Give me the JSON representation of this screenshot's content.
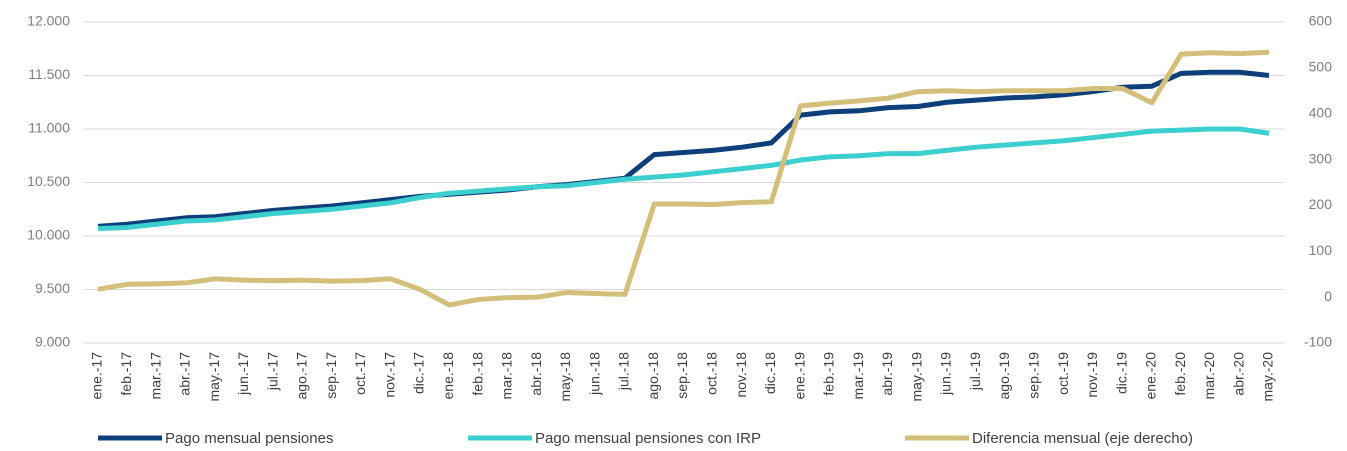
{
  "chart_data": {
    "type": "line",
    "categories": [
      "ene.-17",
      "feb.-17",
      "mar.-17",
      "abr.-17",
      "may.-17",
      "jun.-17",
      "jul.-17",
      "ago.-17",
      "sep.-17",
      "oct.-17",
      "nov.-17",
      "dic.-17",
      "ene.-18",
      "feb.-18",
      "mar.-18",
      "abr.-18",
      "may.-18",
      "jun.-18",
      "jul.-18",
      "ago.-18",
      "sep.-18",
      "oct.-18",
      "nov.-18",
      "dic.-18",
      "ene.-19",
      "feb.-19",
      "mar.-19",
      "abr.-19",
      "may.-19",
      "jun.-19",
      "jul.-19",
      "ago.-19",
      "sep.-19",
      "oct.-19",
      "nov.-19",
      "dic.-19",
      "ene.-20",
      "feb.-20",
      "mar.-20",
      "abr.-20",
      "may.-20"
    ],
    "series": [
      {
        "name": "Pago mensual pensiones",
        "color": "#0d3f7a",
        "values": [
          10090,
          10110,
          10140,
          10170,
          10180,
          10210,
          10240,
          10260,
          10280,
          10310,
          10340,
          10370,
          10390,
          10410,
          10430,
          10460,
          10480,
          10510,
          10540,
          10760,
          10780,
          10800,
          10830,
          10870,
          11130,
          11160,
          11170,
          11200,
          11210,
          11250,
          11270,
          11290,
          11300,
          11320,
          11350,
          11390,
          11400,
          11520,
          11530,
          11530,
          11500
        ]
      },
      {
        "name": "Pago mensual pensiones con IRP",
        "color": "#3ccfcf",
        "values": [
          10070,
          10080,
          10110,
          10140,
          10150,
          10180,
          10210,
          10230,
          10250,
          10280,
          10310,
          10360,
          10400,
          10420,
          10440,
          10460,
          10470,
          10500,
          10530,
          10550,
          10570,
          10600,
          10630,
          10660,
          10710,
          10740,
          10750,
          10770,
          10770,
          10800,
          10830,
          10850,
          10870,
          10890,
          10920,
          10950,
          10980,
          10990,
          11000,
          11000,
          10960
        ]
      },
      {
        "name": "Diferencia mensual (eje derecho)",
        "color": "#d4bf7a",
        "axis": "y2",
        "values": [
          17,
          28,
          29,
          31,
          40,
          37,
          36,
          37,
          35,
          36,
          40,
          17,
          -17,
          -5,
          -1,
          0,
          10,
          8,
          6,
          203,
          203,
          202,
          206,
          208,
          417,
          423,
          428,
          434,
          448,
          450,
          448,
          450,
          450,
          450,
          455,
          455,
          424,
          530,
          533,
          531,
          534
        ]
      }
    ],
    "ylim": [
      9000,
      12000
    ],
    "yticks": [
      {
        "value": 9000,
        "label": "9.000"
      },
      {
        "value": 9500,
        "label": "9.500"
      },
      {
        "value": 10000,
        "label": "10.000"
      },
      {
        "value": 10500,
        "label": "10.500"
      },
      {
        "value": 11000,
        "label": "11.000"
      },
      {
        "value": 11500,
        "label": "11.500"
      },
      {
        "value": 12000,
        "label": "12.000"
      }
    ],
    "y2lim": [
      -100,
      600
    ],
    "y2ticks": [
      -100,
      0,
      100,
      200,
      300,
      400,
      500,
      600
    ],
    "grid": true,
    "legend": "bottom"
  }
}
